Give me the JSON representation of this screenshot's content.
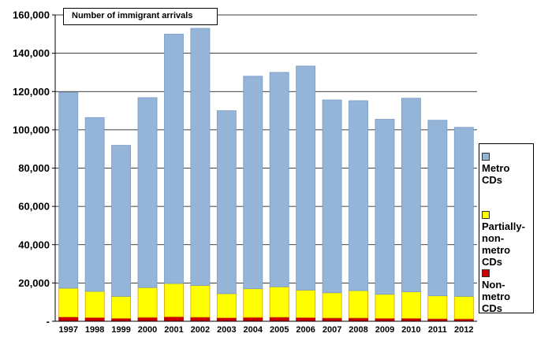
{
  "chart_data": {
    "type": "bar",
    "stacked": true,
    "title": "Number of immigrant arrivals",
    "categories": [
      "1997",
      "1998",
      "1999",
      "2000",
      "2001",
      "2002",
      "2003",
      "2004",
      "2005",
      "2006",
      "2007",
      "2008",
      "2009",
      "2010",
      "2011",
      "2012"
    ],
    "series": [
      {
        "name": "Non-metro CDs",
        "color": "#cc0000",
        "values": [
          2200,
          1900,
          1500,
          2000,
          2300,
          2100,
          1800,
          2000,
          2100,
          1900,
          1700,
          1700,
          1500,
          1500,
          1300,
          1200
        ]
      },
      {
        "name": "Partially-non-metro CDs",
        "color": "#ffff00",
        "values": [
          15100,
          13700,
          11500,
          15600,
          17400,
          16600,
          12600,
          15000,
          15900,
          14400,
          13200,
          14300,
          12600,
          13900,
          12000,
          11800
        ]
      },
      {
        "name": "Metro CDs",
        "color": "#94b4d8",
        "values": [
          102200,
          90800,
          78900,
          99200,
          130300,
          134300,
          95600,
          111000,
          112000,
          117000,
          100700,
          99200,
          91400,
          101100,
          91700,
          88300
        ]
      }
    ],
    "ylim": [
      0,
      160000
    ],
    "yticks": [
      "-",
      "20,000",
      "40,000",
      "60,000",
      "80,000",
      "100,000",
      "120,000",
      "140,000",
      "160,000"
    ],
    "grid": true,
    "legend_position": "right"
  },
  "legend": [
    {
      "label": "Metro CDs",
      "color": "#94b4d8"
    },
    {
      "label": "Partially-non-metro CDs",
      "color": "#ffff00"
    },
    {
      "label": "Non-metro CDs",
      "color": "#cc0000"
    }
  ]
}
